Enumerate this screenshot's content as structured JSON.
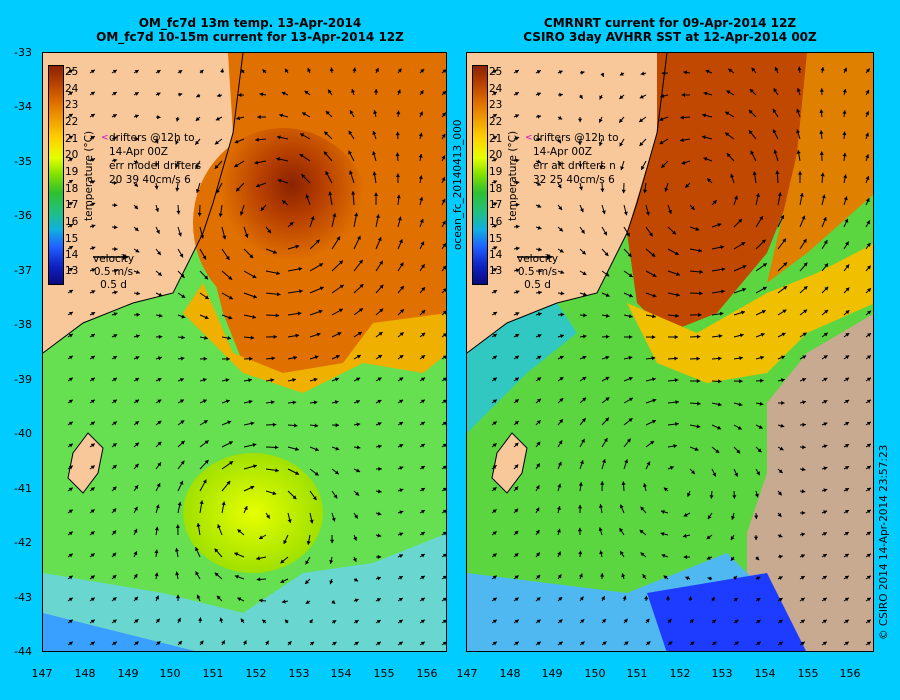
{
  "left_panel": {
    "title_line1": "OM_fc7d 13m temp. 13-Apr-2014",
    "title_line2": "OM_fc7d 10-15m current for 13-Apr-2014 12Z",
    "drifters": [
      "drifters @12h to",
      "14-Apr 00Z",
      "err model drifters",
      "20 39 40cm/s 6"
    ],
    "velocity_label": "velocity",
    "velocity_scale": "0.5 m/s",
    "velocity_time": "0.5 d"
  },
  "right_panel": {
    "title_line1": "CMRNRT current for 09-Apr-2014 12Z",
    "title_line2": "CSIRO 3day AVHRR SST at 12-Apr-2014 00Z",
    "drifters": [
      "drifters @12h to",
      "14-Apr 00Z",
      "err alt drifters n",
      "32 25 40cm/s 6"
    ],
    "velocity_label": "velocity",
    "velocity_scale": "0.5 m/s",
    "velocity_time": "0.5 d",
    "side_label": "ocean_fc_20140413_000"
  },
  "colorbar": {
    "title": "temperature (°C)",
    "labels": [
      "25",
      "24",
      "23",
      "22",
      "21",
      "20",
      "19",
      "18",
      "17",
      "16",
      "15",
      "14",
      "13"
    ]
  },
  "x_ticks": [
    "147",
    "148",
    "149",
    "150",
    "151",
    "152",
    "153",
    "154",
    "155",
    "156"
  ],
  "y_ticks": [
    "-33",
    "-34",
    "-35",
    "-36",
    "-37",
    "-38",
    "-39",
    "-40",
    "-41",
    "-42",
    "-43",
    "-44"
  ],
  "footer_label": "© CSIRO 2014   14-Apr-2014 23:57:23"
}
